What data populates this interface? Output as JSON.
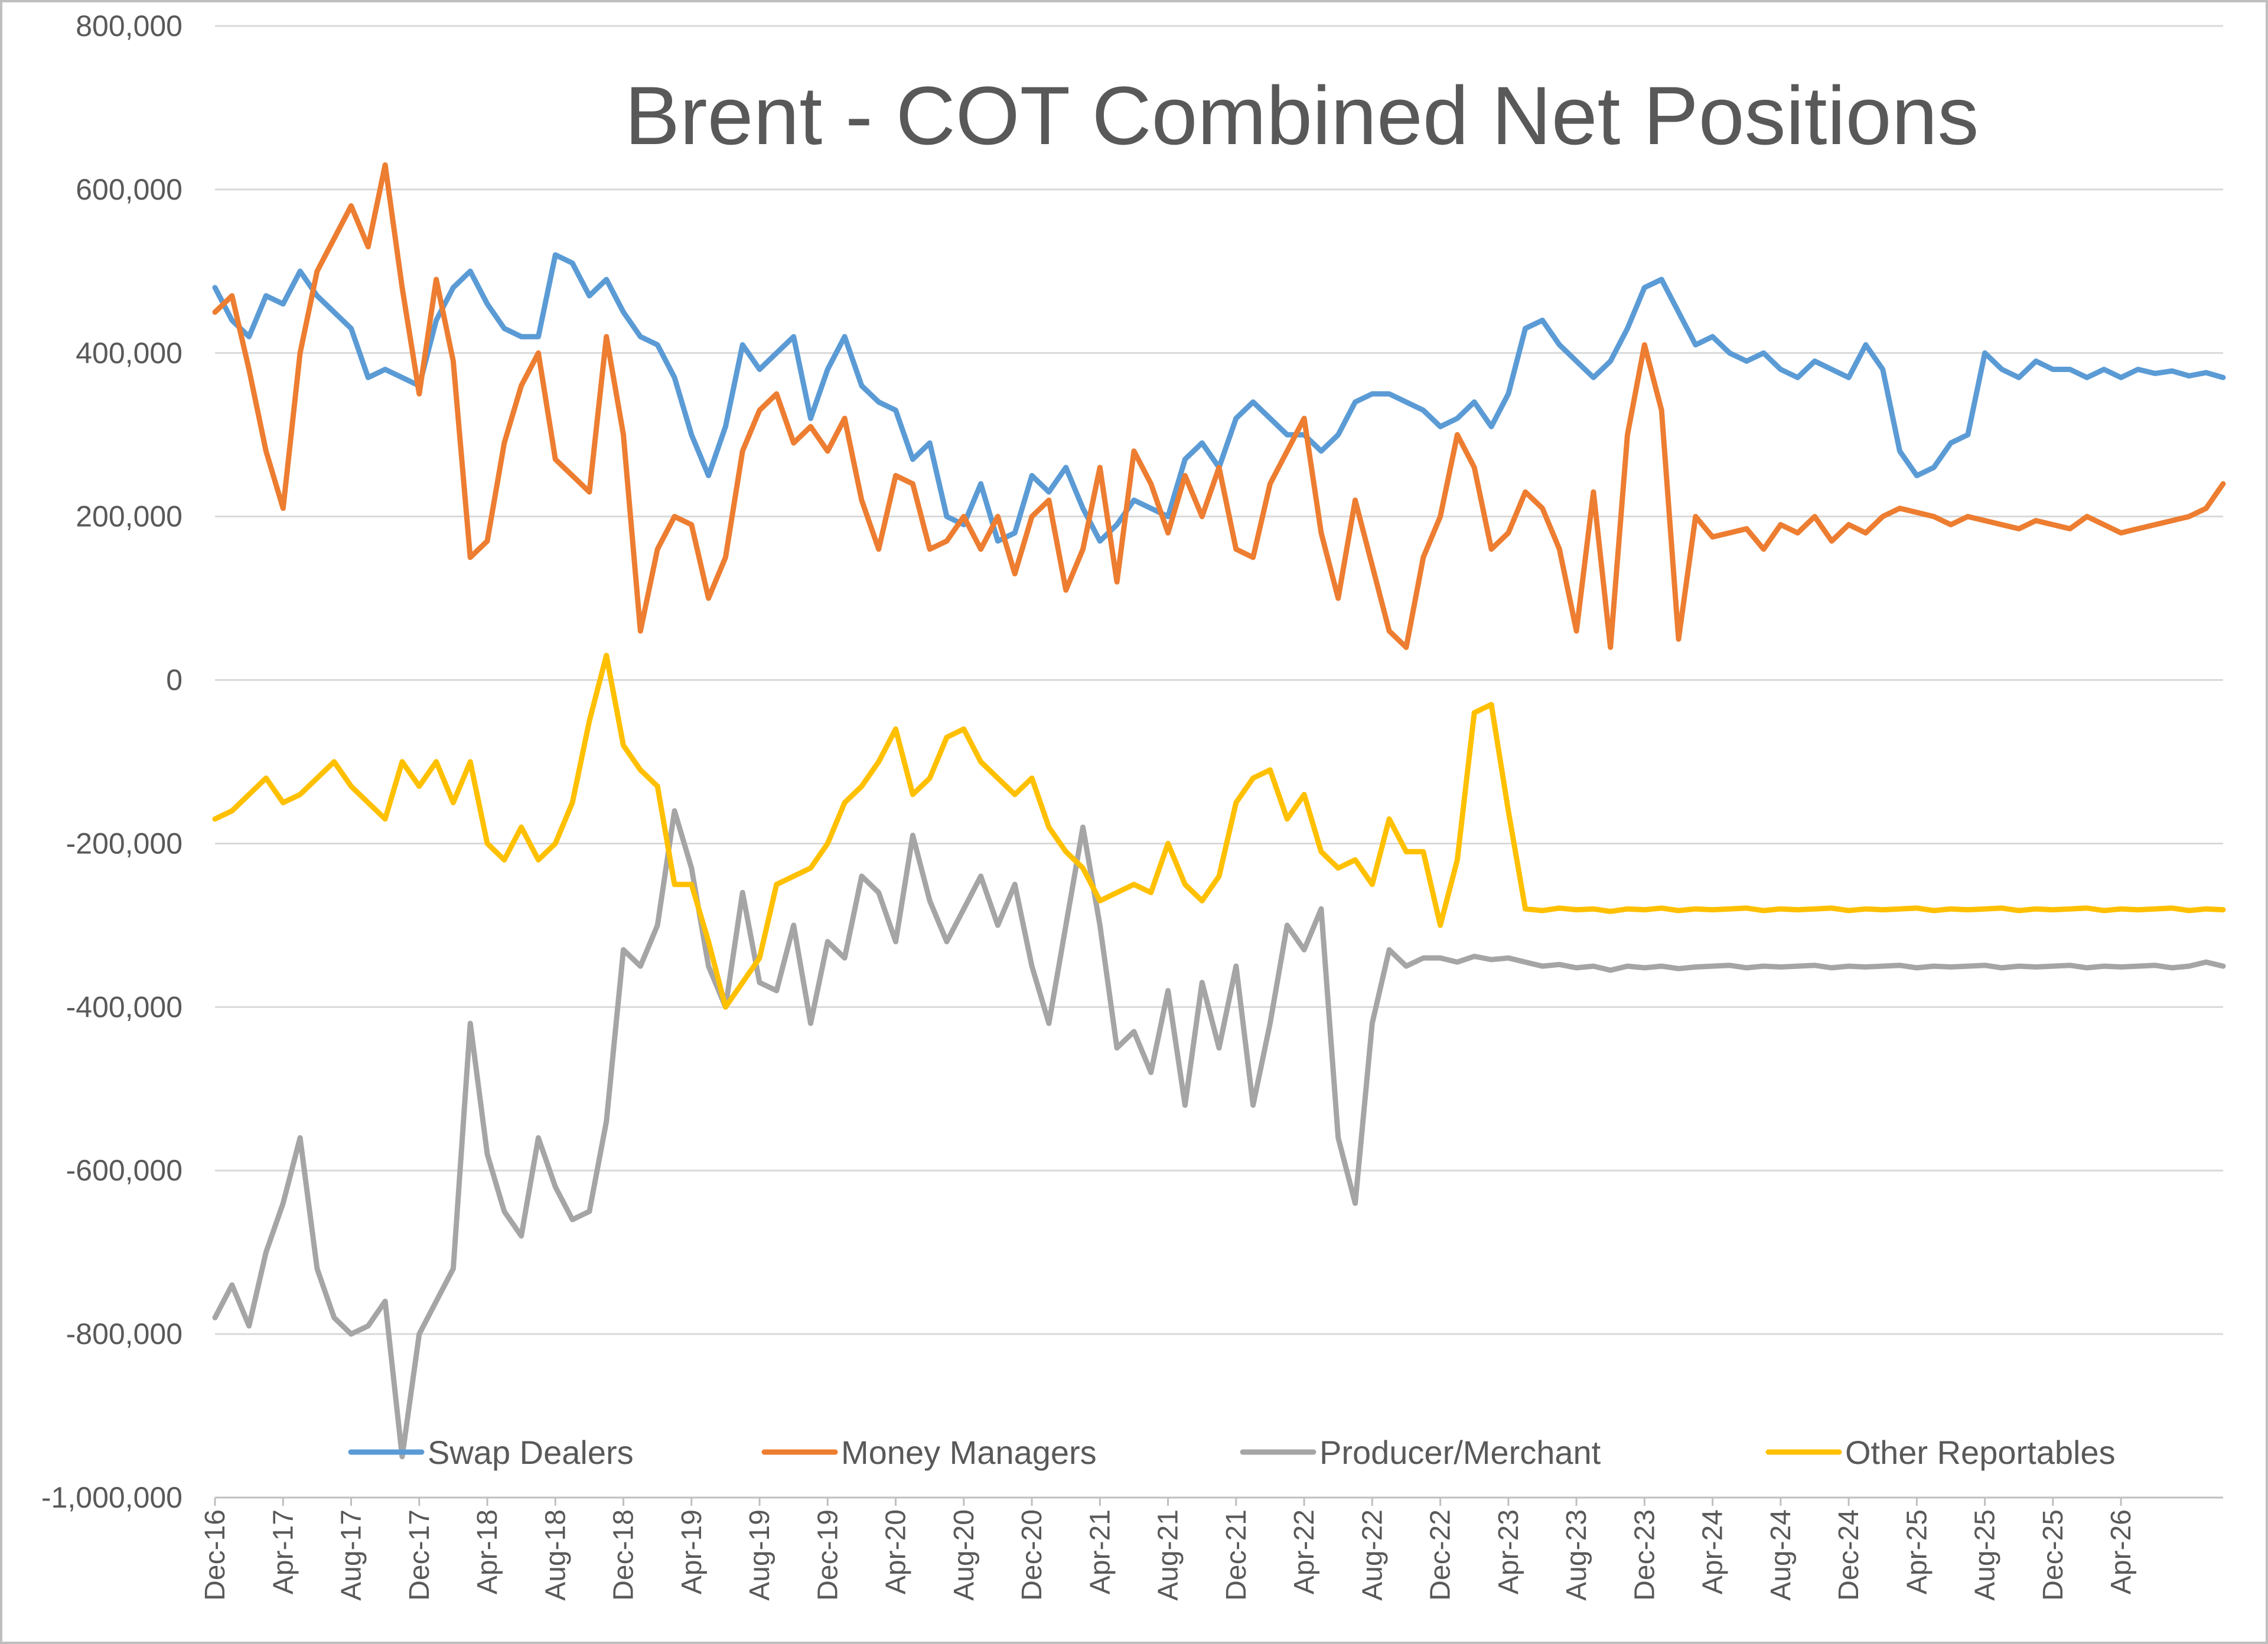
{
  "chart_data": {
    "type": "line",
    "title": "Brent - COT Combined Net Positions",
    "xlabel": "",
    "ylabel": "",
    "ylim": [
      -1000000,
      800000
    ],
    "y_ticks": [
      800000,
      600000,
      400000,
      200000,
      0,
      -200000,
      -400000,
      -600000,
      -800000,
      -1000000
    ],
    "y_tick_labels": [
      "800,000",
      "600,000",
      "400,000",
      "200,000",
      "0",
      "-200,000",
      "-400,000",
      "-600,000",
      "-800,000",
      "-1,000,000"
    ],
    "x_tick_labels": [
      "Dec-16",
      "Apr-17",
      "Aug-17",
      "Dec-17",
      "Apr-18",
      "Aug-18",
      "Dec-18",
      "Apr-19",
      "Aug-19",
      "Dec-19",
      "Apr-20",
      "Aug-20",
      "Dec-20",
      "Apr-21",
      "Aug-21",
      "Dec-21",
      "Apr-22",
      "Aug-22",
      "Dec-22",
      "Apr-23",
      "Aug-23",
      "Dec-23",
      "Apr-24",
      "Aug-24",
      "Dec-24",
      "Apr-25",
      "Aug-25",
      "Dec-25",
      "Apr-26"
    ],
    "x_units": "months since Dec-16",
    "x_range": [
      0,
      118
    ],
    "grid": true,
    "legend_position": "bottom",
    "series": [
      {
        "name": "Swap Dealers",
        "color": "#5B9BD5",
        "x": [
          0,
          1,
          2,
          3,
          4,
          5,
          6,
          7,
          8,
          9,
          10,
          11,
          12,
          13,
          14,
          15,
          16,
          17,
          18,
          19,
          20,
          21,
          22,
          23,
          24,
          25,
          26,
          27,
          28,
          29,
          30,
          31,
          32,
          33,
          34,
          35,
          36,
          37,
          38,
          39,
          40,
          41,
          42,
          43,
          44,
          45,
          46,
          47,
          48,
          49,
          50,
          51,
          52,
          53,
          54,
          55,
          56,
          57,
          58,
          59,
          60,
          61,
          62,
          63,
          64,
          65,
          66,
          67,
          68,
          69,
          70,
          71,
          72,
          73,
          74,
          75,
          76,
          77,
          78,
          79,
          80,
          81,
          82,
          83,
          84,
          85,
          86,
          87,
          88,
          89,
          90,
          91,
          92,
          93,
          94,
          95,
          96,
          97,
          98,
          99,
          100,
          101,
          102,
          103,
          104,
          105,
          106,
          107,
          108,
          109,
          110,
          111,
          112,
          113,
          114,
          115,
          116,
          117,
          118
        ],
        "values": [
          480000,
          440000,
          420000,
          470000,
          460000,
          500000,
          470000,
          450000,
          430000,
          370000,
          380000,
          370000,
          360000,
          440000,
          480000,
          500000,
          460000,
          430000,
          420000,
          420000,
          520000,
          510000,
          470000,
          490000,
          450000,
          420000,
          410000,
          370000,
          300000,
          250000,
          310000,
          410000,
          380000,
          400000,
          420000,
          320000,
          380000,
          420000,
          360000,
          340000,
          330000,
          270000,
          290000,
          200000,
          190000,
          240000,
          170000,
          180000,
          250000,
          230000,
          260000,
          210000,
          170000,
          190000,
          220000,
          210000,
          200000,
          270000,
          290000,
          260000,
          320000,
          340000,
          320000,
          300000,
          300000,
          280000,
          300000,
          340000,
          350000,
          350000,
          340000,
          330000,
          310000,
          320000,
          340000,
          310000,
          350000,
          430000,
          440000,
          410000,
          390000,
          370000,
          390000,
          430000,
          480000,
          490000,
          450000,
          410000,
          420000,
          400000,
          390000,
          400000,
          380000,
          370000,
          390000,
          380000,
          370000,
          410000,
          380000,
          280000,
          250000,
          260000,
          290000,
          300000,
          400000,
          380000,
          370000,
          390000,
          380000,
          380000,
          370000,
          380000,
          370000,
          380000,
          375000,
          378000,
          372000,
          376000,
          370000
        ]
      },
      {
        "name": "Money Managers",
        "color": "#ED7D31",
        "x": [
          0,
          1,
          2,
          3,
          4,
          5,
          6,
          7,
          8,
          9,
          10,
          11,
          12,
          13,
          14,
          15,
          16,
          17,
          18,
          19,
          20,
          21,
          22,
          23,
          24,
          25,
          26,
          27,
          28,
          29,
          30,
          31,
          32,
          33,
          34,
          35,
          36,
          37,
          38,
          39,
          40,
          41,
          42,
          43,
          44,
          45,
          46,
          47,
          48,
          49,
          50,
          51,
          52,
          53,
          54,
          55,
          56,
          57,
          58,
          59,
          60,
          61,
          62,
          63,
          64,
          65,
          66,
          67,
          68,
          69,
          70,
          71,
          72,
          73,
          74,
          75,
          76,
          77,
          78,
          79,
          80,
          81,
          82,
          83,
          84,
          85,
          86,
          87,
          88,
          89,
          90,
          91,
          92,
          93,
          94,
          95,
          96,
          97,
          98,
          99,
          100,
          101,
          102,
          103,
          104,
          105,
          106,
          107,
          108,
          109,
          110,
          111,
          112,
          113,
          114,
          115,
          116,
          117,
          118
        ],
        "values": [
          450000,
          470000,
          380000,
          280000,
          210000,
          400000,
          500000,
          540000,
          580000,
          530000,
          630000,
          480000,
          350000,
          490000,
          390000,
          150000,
          170000,
          290000,
          360000,
          400000,
          270000,
          250000,
          230000,
          420000,
          300000,
          60000,
          160000,
          200000,
          190000,
          100000,
          150000,
          280000,
          330000,
          350000,
          290000,
          310000,
          280000,
          320000,
          220000,
          160000,
          250000,
          240000,
          160000,
          170000,
          200000,
          160000,
          200000,
          130000,
          200000,
          220000,
          110000,
          160000,
          260000,
          120000,
          280000,
          240000,
          180000,
          250000,
          200000,
          260000,
          160000,
          150000,
          240000,
          280000,
          320000,
          180000,
          100000,
          220000,
          140000,
          60000,
          40000,
          150000,
          200000,
          300000,
          260000,
          160000,
          180000,
          230000,
          210000,
          160000,
          60000,
          230000,
          40000,
          300000,
          410000,
          330000,
          50000,
          200000,
          175000,
          180000,
          185000,
          160000,
          190000,
          180000,
          200000,
          170000,
          190000,
          180000,
          200000,
          210000,
          205000,
          200000,
          190000,
          200000,
          195000,
          190000,
          185000,
          195000,
          190000,
          185000,
          200000,
          190000,
          180000,
          185000,
          190000,
          195000,
          200000,
          210000,
          240000
        ]
      },
      {
        "name": "Producer/Merchant",
        "color": "#A5A5A5",
        "x": [
          0,
          1,
          2,
          3,
          4,
          5,
          6,
          7,
          8,
          9,
          10,
          11,
          12,
          13,
          14,
          15,
          16,
          17,
          18,
          19,
          20,
          21,
          22,
          23,
          24,
          25,
          26,
          27,
          28,
          29,
          30,
          31,
          32,
          33,
          34,
          35,
          36,
          37,
          38,
          39,
          40,
          41,
          42,
          43,
          44,
          45,
          46,
          47,
          48,
          49,
          50,
          51,
          52,
          53,
          54,
          55,
          56,
          57,
          58,
          59,
          60,
          61,
          62,
          63,
          64,
          65,
          66,
          67,
          68,
          69,
          70,
          71,
          72,
          73,
          74,
          75,
          76,
          77,
          78,
          79,
          80,
          81,
          82,
          83,
          84,
          85,
          86,
          87,
          88,
          89,
          90,
          91,
          92,
          93,
          94,
          95,
          96,
          97,
          98,
          99,
          100,
          101,
          102,
          103,
          104,
          105,
          106,
          107,
          108,
          109,
          110,
          111,
          112,
          113,
          114,
          115,
          116,
          117,
          118
        ],
        "values": [
          -780000,
          -740000,
          -790000,
          -700000,
          -640000,
          -560000,
          -720000,
          -780000,
          -800000,
          -790000,
          -760000,
          -950000,
          -800000,
          -760000,
          -720000,
          -420000,
          -580000,
          -650000,
          -680000,
          -560000,
          -620000,
          -660000,
          -650000,
          -540000,
          -330000,
          -350000,
          -300000,
          -160000,
          -230000,
          -350000,
          -400000,
          -260000,
          -370000,
          -380000,
          -300000,
          -420000,
          -320000,
          -340000,
          -240000,
          -260000,
          -320000,
          -190000,
          -270000,
          -320000,
          -280000,
          -240000,
          -300000,
          -250000,
          -350000,
          -420000,
          -300000,
          -180000,
          -300000,
          -450000,
          -430000,
          -480000,
          -380000,
          -520000,
          -370000,
          -450000,
          -350000,
          -520000,
          -420000,
          -300000,
          -330000,
          -280000,
          -560000,
          -640000,
          -420000,
          -330000,
          -350000,
          -340000,
          -340000,
          -345000,
          -338000,
          -342000,
          -340000,
          -345000,
          -350000,
          -348000,
          -352000,
          -350000,
          -355000,
          -350000,
          -352000,
          -350000,
          -353000,
          -351000,
          -350000,
          -349000,
          -352000,
          -350000,
          -351000,
          -350000,
          -349000,
          -352000,
          -350000,
          -351000,
          -350000,
          -349000,
          -352000,
          -350000,
          -351000,
          -350000,
          -349000,
          -352000,
          -350000,
          -351000,
          -350000,
          -349000,
          -352000,
          -350000,
          -351000,
          -350000,
          -349000,
          -352000,
          -350000,
          -345000,
          -350000
        ]
      },
      {
        "name": "Other Reportables",
        "color": "#FFC000",
        "x": [
          0,
          1,
          2,
          3,
          4,
          5,
          6,
          7,
          8,
          9,
          10,
          11,
          12,
          13,
          14,
          15,
          16,
          17,
          18,
          19,
          20,
          21,
          22,
          23,
          24,
          25,
          26,
          27,
          28,
          29,
          30,
          31,
          32,
          33,
          34,
          35,
          36,
          37,
          38,
          39,
          40,
          41,
          42,
          43,
          44,
          45,
          46,
          47,
          48,
          49,
          50,
          51,
          52,
          53,
          54,
          55,
          56,
          57,
          58,
          59,
          60,
          61,
          62,
          63,
          64,
          65,
          66,
          67,
          68,
          69,
          70,
          71,
          72,
          73,
          74,
          75,
          76,
          77,
          78,
          79,
          80,
          81,
          82,
          83,
          84,
          85,
          86,
          87,
          88,
          89,
          90,
          91,
          92,
          93,
          94,
          95,
          96,
          97,
          98,
          99,
          100,
          101,
          102,
          103,
          104,
          105,
          106,
          107,
          108,
          109,
          110,
          111,
          112,
          113,
          114,
          115,
          116,
          117,
          118
        ],
        "values": [
          -170000,
          -160000,
          -140000,
          -120000,
          -150000,
          -140000,
          -120000,
          -100000,
          -130000,
          -150000,
          -170000,
          -100000,
          -130000,
          -100000,
          -150000,
          -100000,
          -200000,
          -220000,
          -180000,
          -220000,
          -200000,
          -150000,
          -50000,
          30000,
          -80000,
          -110000,
          -130000,
          -250000,
          -250000,
          -320000,
          -400000,
          -370000,
          -340000,
          -250000,
          -240000,
          -230000,
          -200000,
          -150000,
          -130000,
          -100000,
          -60000,
          -140000,
          -120000,
          -70000,
          -60000,
          -100000,
          -120000,
          -140000,
          -120000,
          -180000,
          -210000,
          -230000,
          -270000,
          -260000,
          -250000,
          -260000,
          -200000,
          -250000,
          -270000,
          -240000,
          -150000,
          -120000,
          -110000,
          -170000,
          -140000,
          -210000,
          -230000,
          -220000,
          -250000,
          -170000,
          -210000,
          -210000,
          -300000,
          -220000,
          -40000,
          -30000,
          -160000,
          -280000,
          -282000,
          -279000,
          -281000,
          -280000,
          -283000,
          -280000,
          -281000,
          -279000,
          -282000,
          -280000,
          -281000,
          -280000,
          -279000,
          -282000,
          -280000,
          -281000,
          -280000,
          -279000,
          -282000,
          -280000,
          -281000,
          -280000,
          -279000,
          -282000,
          -280000,
          -281000,
          -280000,
          -279000,
          -282000,
          -280000,
          -281000,
          -280000,
          -279000,
          -282000,
          -280000,
          -281000,
          -280000,
          -279000,
          -282000,
          -280000,
          -281000
        ]
      }
    ]
  }
}
